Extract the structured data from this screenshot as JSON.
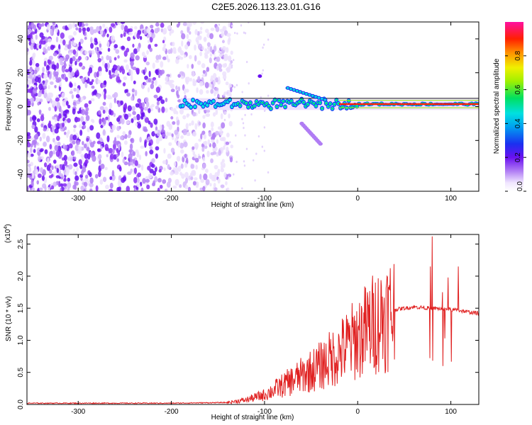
{
  "title": "C2E5.2026.113.23.01.G16",
  "chart_data": [
    {
      "type": "heatmap",
      "name": "spectrogram",
      "xlabel": "Height of straight line (km)",
      "ylabel": "Frequency (Hz)",
      "xlim": [
        -355,
        130
      ],
      "ylim": [
        -50,
        50
      ],
      "xticks": [
        -300,
        -200,
        -100,
        0,
        100
      ],
      "yticks": [
        -40,
        -20,
        0,
        20,
        40
      ],
      "colorbar": {
        "label": "Normalized spectral amplitude",
        "range": [
          0,
          1
        ],
        "ticks": [
          0.0,
          0.2,
          0.4,
          0.6,
          0.8
        ],
        "tick_labels": [
          "0.0",
          "0.2",
          "0.4",
          "0.6",
          "0.8"
        ]
      },
      "features": {
        "noise_region_km": [
          -355,
          -145
        ],
        "main_ridge": {
          "start_km": -190,
          "end_km": 130,
          "frequency_hz": 1.5
        },
        "side_branch_upper": {
          "start_km": -75,
          "end_km": -35,
          "frequency_hz": [
            11,
            4
          ]
        },
        "side_branch_lower": {
          "start_km": -60,
          "end_km": -40,
          "frequency_hz": [
            -10,
            -22
          ]
        }
      }
    },
    {
      "type": "line",
      "name": "snr",
      "xlabel": "Height of straight line (km)",
      "ylabel": "SNR (10 * v/v)",
      "yscale_label": "(x10",
      "yscale_exponent": "4",
      "xlim": [
        -355,
        130
      ],
      "ylim": [
        0,
        2.65
      ],
      "xticks": [
        -300,
        -200,
        -100,
        0,
        100
      ],
      "yticks": [
        0.0,
        0.5,
        1.0,
        1.5,
        2.0,
        2.5
      ],
      "ytick_labels": [
        "0.0",
        "0.5",
        "1.0",
        "1.5",
        "2.0",
        "2.5"
      ],
      "color": "#e02020",
      "series": [
        {
          "name": "SNR envelope",
          "x": [
            -355,
            -200,
            -140,
            -120,
            -100,
            -80,
            -60,
            -40,
            -20,
            0,
            20,
            40,
            60,
            80,
            100,
            130
          ],
          "values": [
            0.02,
            0.02,
            0.03,
            0.07,
            0.15,
            0.3,
            0.45,
            0.6,
            0.8,
            1.05,
            1.3,
            1.48,
            1.52,
            1.5,
            1.48,
            1.42
          ]
        }
      ],
      "spikes": [
        {
          "x": 80,
          "value": 2.62
        },
        {
          "x": 78,
          "value": 2.15
        },
        {
          "x": 108,
          "value": 2.15
        },
        {
          "x": 97,
          "value": 1.98
        },
        {
          "x": 91,
          "value": 1.75
        }
      ]
    }
  ]
}
